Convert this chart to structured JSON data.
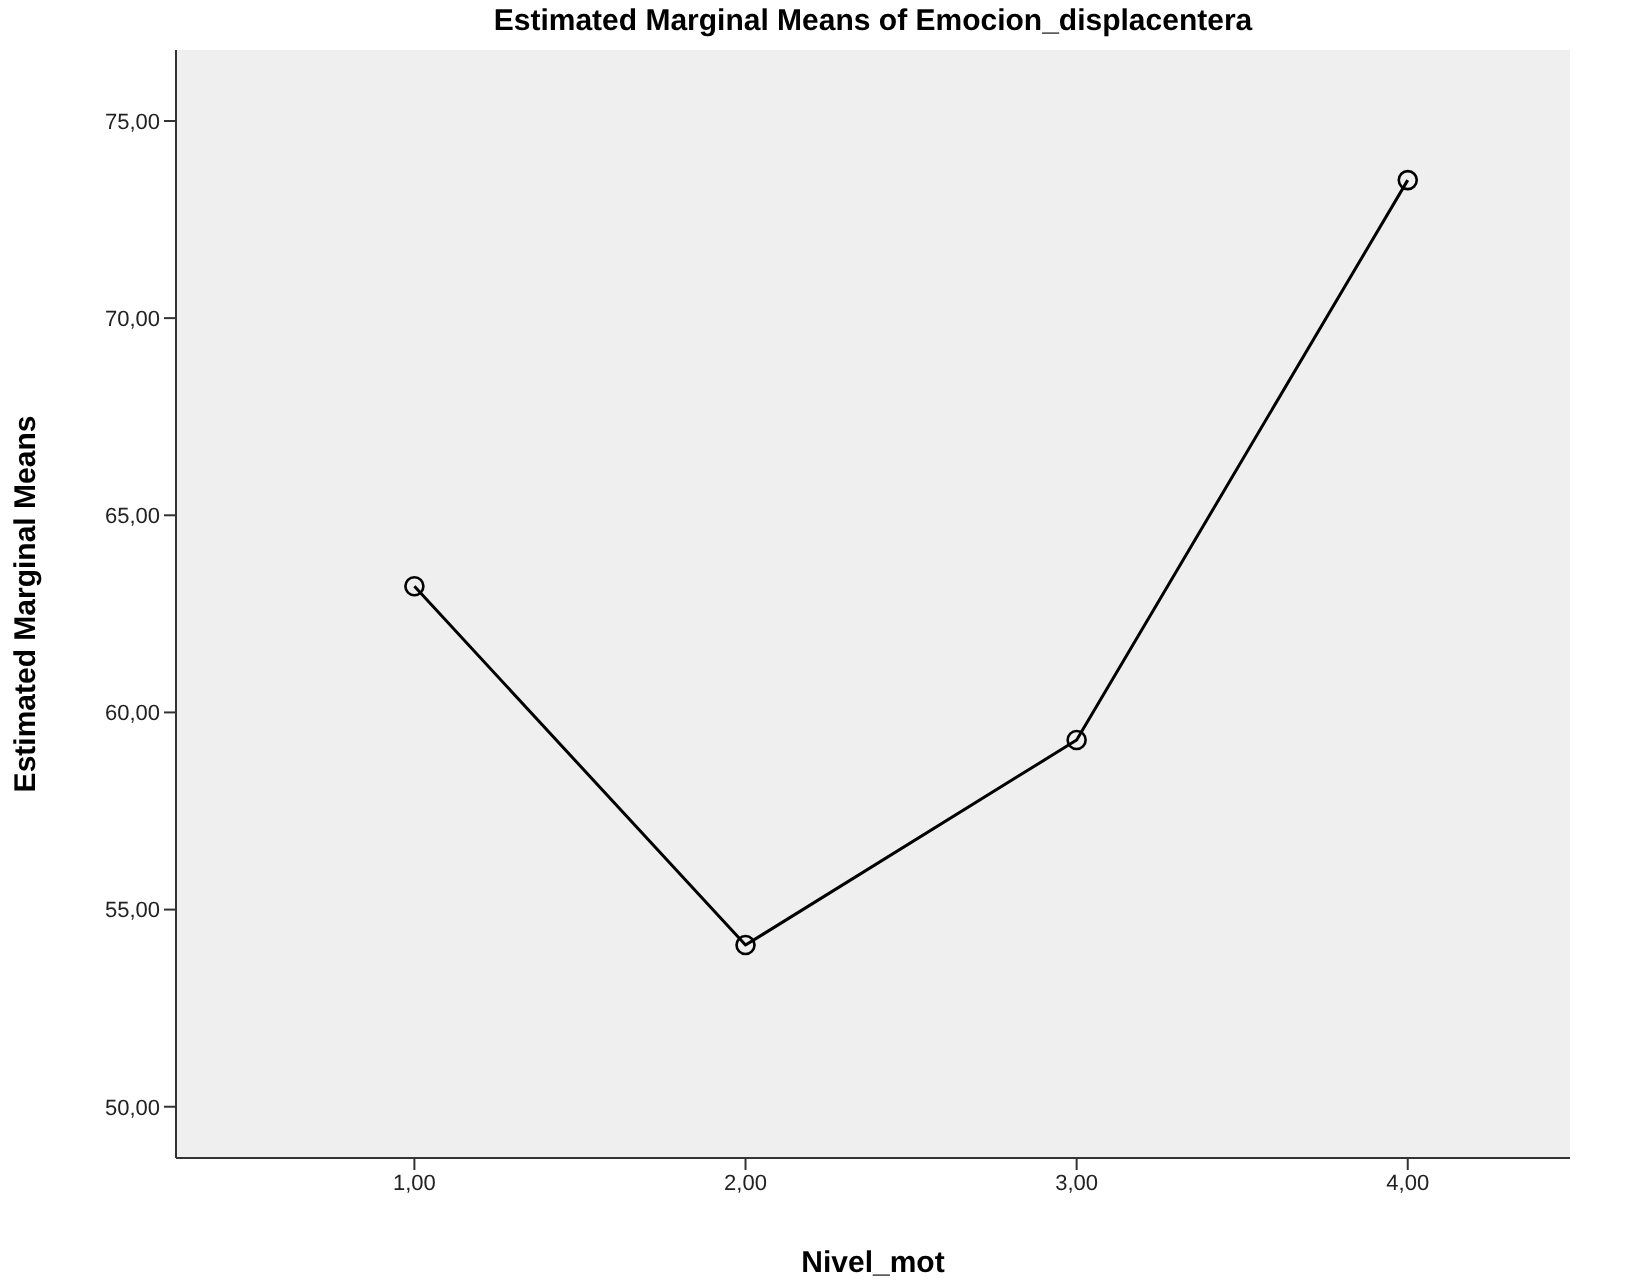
{
  "chart_data": {
    "type": "line",
    "title": "Estimated Marginal Means of Emocion_displacentera",
    "xlabel": "Nivel_mot",
    "ylabel": "Estimated Marginal Means",
    "x": [
      1,
      2,
      3,
      4
    ],
    "series": [
      {
        "color": "#000000",
        "values": [
          63.2,
          54.1,
          59.3,
          73.5
        ]
      }
    ],
    "xlim": [
      0.28,
      4.49
    ],
    "ylim": [
      48.7,
      76.8
    ],
    "xticks": [
      {
        "value": 1,
        "label": "1,00"
      },
      {
        "value": 2,
        "label": "2,00"
      },
      {
        "value": 3,
        "label": "3,00"
      },
      {
        "value": 4,
        "label": "4,00"
      }
    ],
    "yticks": [
      {
        "value": 50,
        "label": "50,00"
      },
      {
        "value": 55,
        "label": "55,00"
      },
      {
        "value": 60,
        "label": "60,00"
      },
      {
        "value": 65,
        "label": "65,00"
      },
      {
        "value": 70,
        "label": "70,00"
      },
      {
        "value": 75,
        "label": "75,00"
      }
    ],
    "grid": false,
    "marker": "circle",
    "line_style": "solid"
  }
}
